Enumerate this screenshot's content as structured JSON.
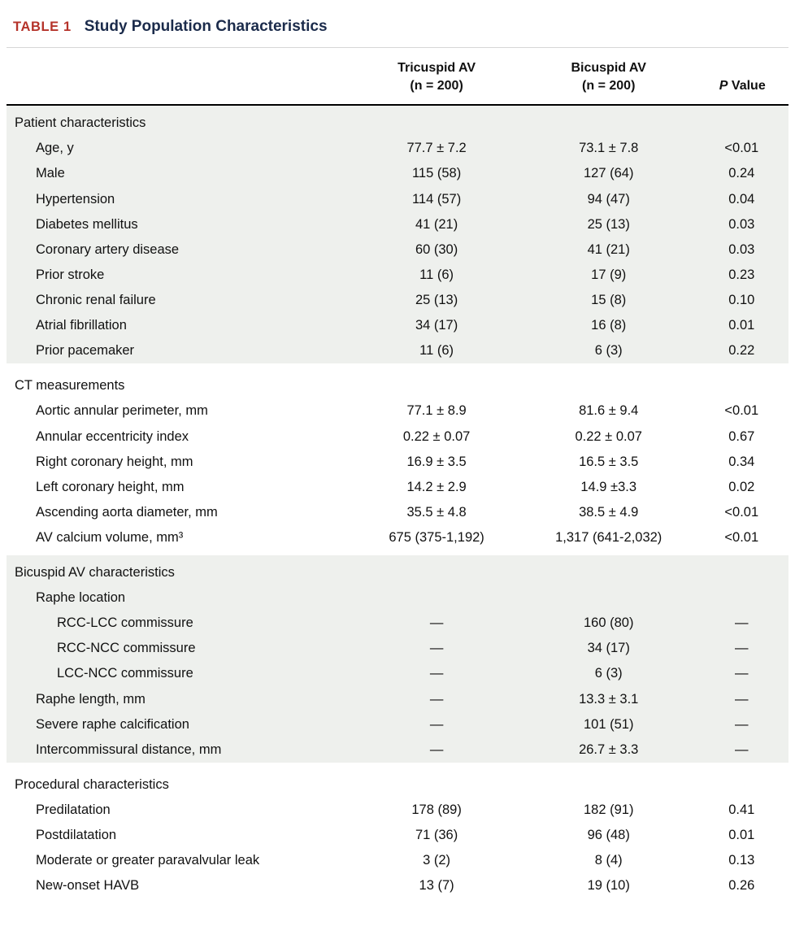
{
  "title": {
    "label": "TABLE 1",
    "text": "Study Population Characteristics"
  },
  "columns": {
    "col1": {
      "line1": "Tricuspid AV",
      "line2": "(n = 200)"
    },
    "col2": {
      "line1": "Bicuspid AV",
      "line2": "(n = 200)"
    },
    "p": {
      "italic": "P",
      "rest": " Value"
    }
  },
  "sections": [
    {
      "header": "Patient characteristics",
      "shaded": true,
      "rows": [
        {
          "label": "Age, y",
          "indent": 1,
          "tricuspid": "77.7 ± 7.2",
          "bicuspid": "73.1 ± 7.8",
          "p": "<0.01"
        },
        {
          "label": "Male",
          "indent": 1,
          "tricuspid": "115 (58)",
          "bicuspid": "127 (64)",
          "p": "0.24"
        },
        {
          "label": "Hypertension",
          "indent": 1,
          "tricuspid": "114 (57)",
          "bicuspid": "94 (47)",
          "p": "0.04"
        },
        {
          "label": "Diabetes mellitus",
          "indent": 1,
          "tricuspid": "41 (21)",
          "bicuspid": "25 (13)",
          "p": "0.03"
        },
        {
          "label": "Coronary artery disease",
          "indent": 1,
          "tricuspid": "60 (30)",
          "bicuspid": "41 (21)",
          "p": "0.03"
        },
        {
          "label": "Prior stroke",
          "indent": 1,
          "tricuspid": "11 (6)",
          "bicuspid": "17 (9)",
          "p": "0.23"
        },
        {
          "label": "Chronic renal failure",
          "indent": 1,
          "tricuspid": "25 (13)",
          "bicuspid": "15 (8)",
          "p": "0.10"
        },
        {
          "label": "Atrial fibrillation",
          "indent": 1,
          "tricuspid": "34 (17)",
          "bicuspid": "16 (8)",
          "p": "0.01"
        },
        {
          "label": "Prior pacemaker",
          "indent": 1,
          "tricuspid": "11 (6)",
          "bicuspid": "6 (3)",
          "p": "0.22"
        }
      ]
    },
    {
      "header": "CT measurements",
      "shaded": false,
      "rows": [
        {
          "label": "Aortic annular perimeter, mm",
          "indent": 1,
          "tricuspid": "77.1 ± 8.9",
          "bicuspid": "81.6 ± 9.4",
          "p": "<0.01"
        },
        {
          "label": "Annular eccentricity index",
          "indent": 1,
          "tricuspid": "0.22 ± 0.07",
          "bicuspid": "0.22 ± 0.07",
          "p": "0.67"
        },
        {
          "label": "Right coronary height, mm",
          "indent": 1,
          "tricuspid": "16.9 ± 3.5",
          "bicuspid": "16.5 ± 3.5",
          "p": "0.34"
        },
        {
          "label": "Left coronary height, mm",
          "indent": 1,
          "tricuspid": "14.2 ± 2.9",
          "bicuspid": "14.9 ±3.3",
          "p": "0.02"
        },
        {
          "label": "Ascending aorta diameter, mm",
          "indent": 1,
          "tricuspid": "35.5 ± 4.8",
          "bicuspid": "38.5 ± 4.9",
          "p": "<0.01"
        },
        {
          "label": "AV calcium volume, mm³",
          "indent": 1,
          "tricuspid": "675 (375-1,192)",
          "bicuspid": "1,317 (641-2,032)",
          "p": "<0.01"
        }
      ]
    },
    {
      "header": "Bicuspid AV characteristics",
      "shaded": true,
      "rows": [
        {
          "label": "Raphe location",
          "indent": 1,
          "tricuspid": "",
          "bicuspid": "",
          "p": ""
        },
        {
          "label": "RCC-LCC commissure",
          "indent": 2,
          "tricuspid": "—",
          "bicuspid": "160 (80)",
          "p": "—"
        },
        {
          "label": "RCC-NCC commissure",
          "indent": 2,
          "tricuspid": "—",
          "bicuspid": "34 (17)",
          "p": "—"
        },
        {
          "label": "LCC-NCC commissure",
          "indent": 2,
          "tricuspid": "—",
          "bicuspid": "6 (3)",
          "p": "—"
        },
        {
          "label": "Raphe length, mm",
          "indent": 1,
          "tricuspid": "—",
          "bicuspid": "13.3 ± 3.1",
          "p": "—"
        },
        {
          "label": "Severe raphe calcification",
          "indent": 1,
          "tricuspid": "—",
          "bicuspid": "101 (51)",
          "p": "—"
        },
        {
          "label": "Intercommissural distance, mm",
          "indent": 1,
          "tricuspid": "—",
          "bicuspid": "26.7 ± 3.3",
          "p": "—"
        }
      ]
    },
    {
      "header": "Procedural characteristics",
      "shaded": false,
      "rows": [
        {
          "label": "Predilatation",
          "indent": 1,
          "tricuspid": "178 (89)",
          "bicuspid": "182 (91)",
          "p": "0.41"
        },
        {
          "label": "Postdilatation",
          "indent": 1,
          "tricuspid": "71 (36)",
          "bicuspid": "96 (48)",
          "p": "0.01"
        },
        {
          "label": "Moderate or greater paravalvular leak",
          "indent": 1,
          "tricuspid": "3 (2)",
          "bicuspid": "8 (4)",
          "p": "0.13"
        },
        {
          "label": "New-onset HAVB",
          "indent": 1,
          "tricuspid": "13 (7)",
          "bicuspid": "19 (10)",
          "p": "0.26"
        }
      ]
    }
  ],
  "colors": {
    "accent_red": "#b5332a",
    "title_navy": "#1b2b4b",
    "shaded_row": "#eef0ed"
  }
}
